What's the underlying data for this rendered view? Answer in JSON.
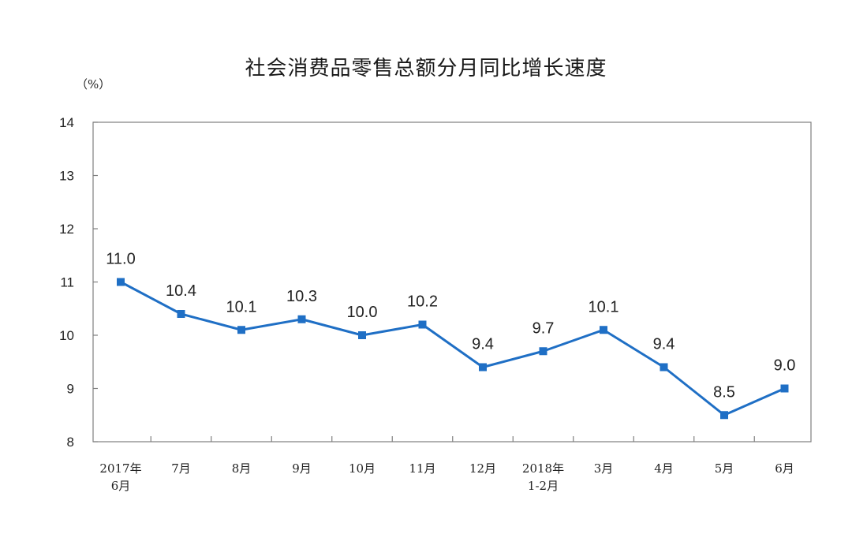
{
  "chart_data": {
    "type": "line",
    "title": "社会消费品零售总额分月同比增长速度",
    "ylabel": "（%）",
    "xlabel": "",
    "ylim": [
      8,
      14
    ],
    "yticks": [
      "8",
      "9",
      "10",
      "11",
      "12",
      "13",
      "14"
    ],
    "grid": false,
    "legend": "none",
    "categories": [
      [
        "2017年",
        "6月"
      ],
      [
        "7月"
      ],
      [
        "8月"
      ],
      [
        "9月"
      ],
      [
        "10月"
      ],
      [
        "11月"
      ],
      [
        "12月"
      ],
      [
        "2018年",
        "1-2月"
      ],
      [
        "3月"
      ],
      [
        "4月"
      ],
      [
        "5月"
      ],
      [
        "6月"
      ]
    ],
    "series": [
      {
        "values": [
          11.0,
          10.4,
          10.1,
          10.3,
          10.0,
          10.2,
          9.4,
          9.7,
          10.1,
          9.4,
          8.5,
          9.0
        ],
        "labels": [
          "11.0",
          "10.4",
          "10.1",
          "10.3",
          "10.0",
          "10.2",
          "9.4",
          "9.7",
          "10.1",
          "9.4",
          "8.5",
          "9.0"
        ],
        "color": "#1f6fc5"
      }
    ],
    "axis_color": "#7f7f7f"
  }
}
